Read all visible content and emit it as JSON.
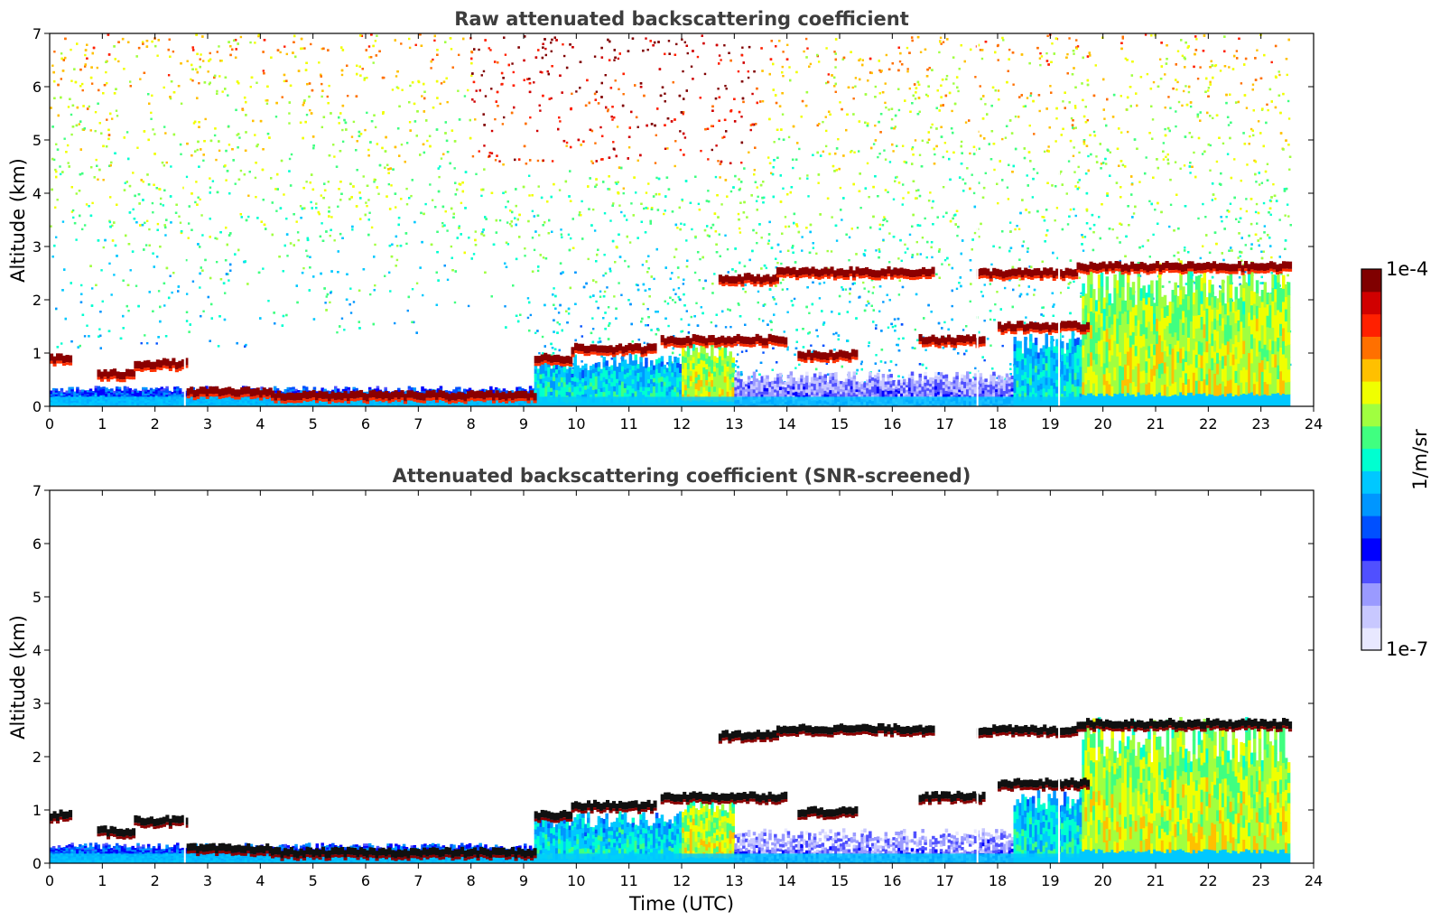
{
  "chart_data": [
    {
      "type": "heatmap",
      "panel": "raw",
      "title": "Raw attenuated backscattering coefficient",
      "xlabel": "",
      "ylabel": "Altitude (km)",
      "xlim": [
        0,
        24
      ],
      "ylim": [
        0,
        7
      ],
      "xticks": [
        "0",
        "1",
        "2",
        "3",
        "4",
        "5",
        "6",
        "7",
        "8",
        "9",
        "10",
        "11",
        "12",
        "13",
        "14",
        "15",
        "16",
        "17",
        "18",
        "19",
        "20",
        "21",
        "22",
        "23",
        "24"
      ],
      "yticks": [
        "0",
        "1",
        "2",
        "3",
        "4",
        "5",
        "6",
        "7"
      ],
      "data_end_time": 23.55,
      "noise": "dense random speckle above ~1 km, strongest (red/orange) between ~8 and ~13 UTC near 6-7 km",
      "layers": [
        {
          "name": "boundary-layer top",
          "segments": [
            [
              0.0,
              0.38,
              0.9
            ],
            [
              0.9,
              1.6,
              0.6
            ],
            [
              1.6,
              2.6,
              0.8
            ],
            [
              2.6,
              4.2,
              0.27
            ],
            [
              4.2,
              9.2,
              0.2
            ],
            [
              9.2,
              9.9,
              0.9
            ],
            [
              9.9,
              11.5,
              1.08
            ],
            [
              11.6,
              14.0,
              1.25
            ],
            [
              14.2,
              15.3,
              0.97
            ],
            [
              16.5,
              17.7,
              1.25
            ],
            [
              18.0,
              19.7,
              1.5
            ]
          ]
        },
        {
          "name": "upper cloud layer",
          "segments": [
            [
              12.7,
              13.8,
              2.4
            ],
            [
              13.8,
              16.8,
              2.52
            ],
            [
              17.6,
              19.5,
              2.5
            ],
            [
              19.5,
              23.55,
              2.62
            ]
          ]
        }
      ],
      "aerosol_regions": [
        {
          "from": 0.0,
          "to": 9.2,
          "top_km": 0.35,
          "level": "low"
        },
        {
          "from": 9.2,
          "to": 12.0,
          "top_km": 0.9,
          "level": "medium"
        },
        {
          "from": 12.0,
          "to": 13.0,
          "top_km": 1.2,
          "level": "high"
        },
        {
          "from": 13.0,
          "to": 18.3,
          "top_km": 0.6,
          "level": "very low"
        },
        {
          "from": 18.3,
          "to": 19.6,
          "top_km": 1.3,
          "level": "medium"
        },
        {
          "from": 19.6,
          "to": 23.55,
          "top_km": 2.5,
          "level": "high"
        }
      ]
    },
    {
      "type": "heatmap",
      "panel": "screened",
      "title": "Attenuated backscattering coefficient (SNR-screened)",
      "xlabel": "Time (UTC)",
      "ylabel": "Altitude (km)",
      "xlim": [
        0,
        24
      ],
      "ylim": [
        0,
        7
      ],
      "xticks": [
        "0",
        "1",
        "2",
        "3",
        "4",
        "5",
        "6",
        "7",
        "8",
        "9",
        "10",
        "11",
        "12",
        "13",
        "14",
        "15",
        "16",
        "17",
        "18",
        "19",
        "20",
        "21",
        "22",
        "23",
        "24"
      ],
      "yticks": [
        "0",
        "1",
        "2",
        "3",
        "4",
        "5",
        "6",
        "7"
      ],
      "data_end_time": 23.55,
      "noise": "removed by SNR screening; cloud layers shown with black saturated cores"
    }
  ],
  "colorbar": {
    "label": "1/m/sr",
    "max_label": "1e-4",
    "min_label": "1e-7",
    "scale": "log",
    "colors": [
      "#e8e8ff",
      "#c8c8ff",
      "#9a9aff",
      "#5050ff",
      "#0000ff",
      "#0050ff",
      "#0096ff",
      "#00c8ff",
      "#00ffd0",
      "#40ff80",
      "#a0ff40",
      "#f0ff00",
      "#ffc000",
      "#ff7000",
      "#ff2000",
      "#d00000",
      "#800000"
    ]
  }
}
